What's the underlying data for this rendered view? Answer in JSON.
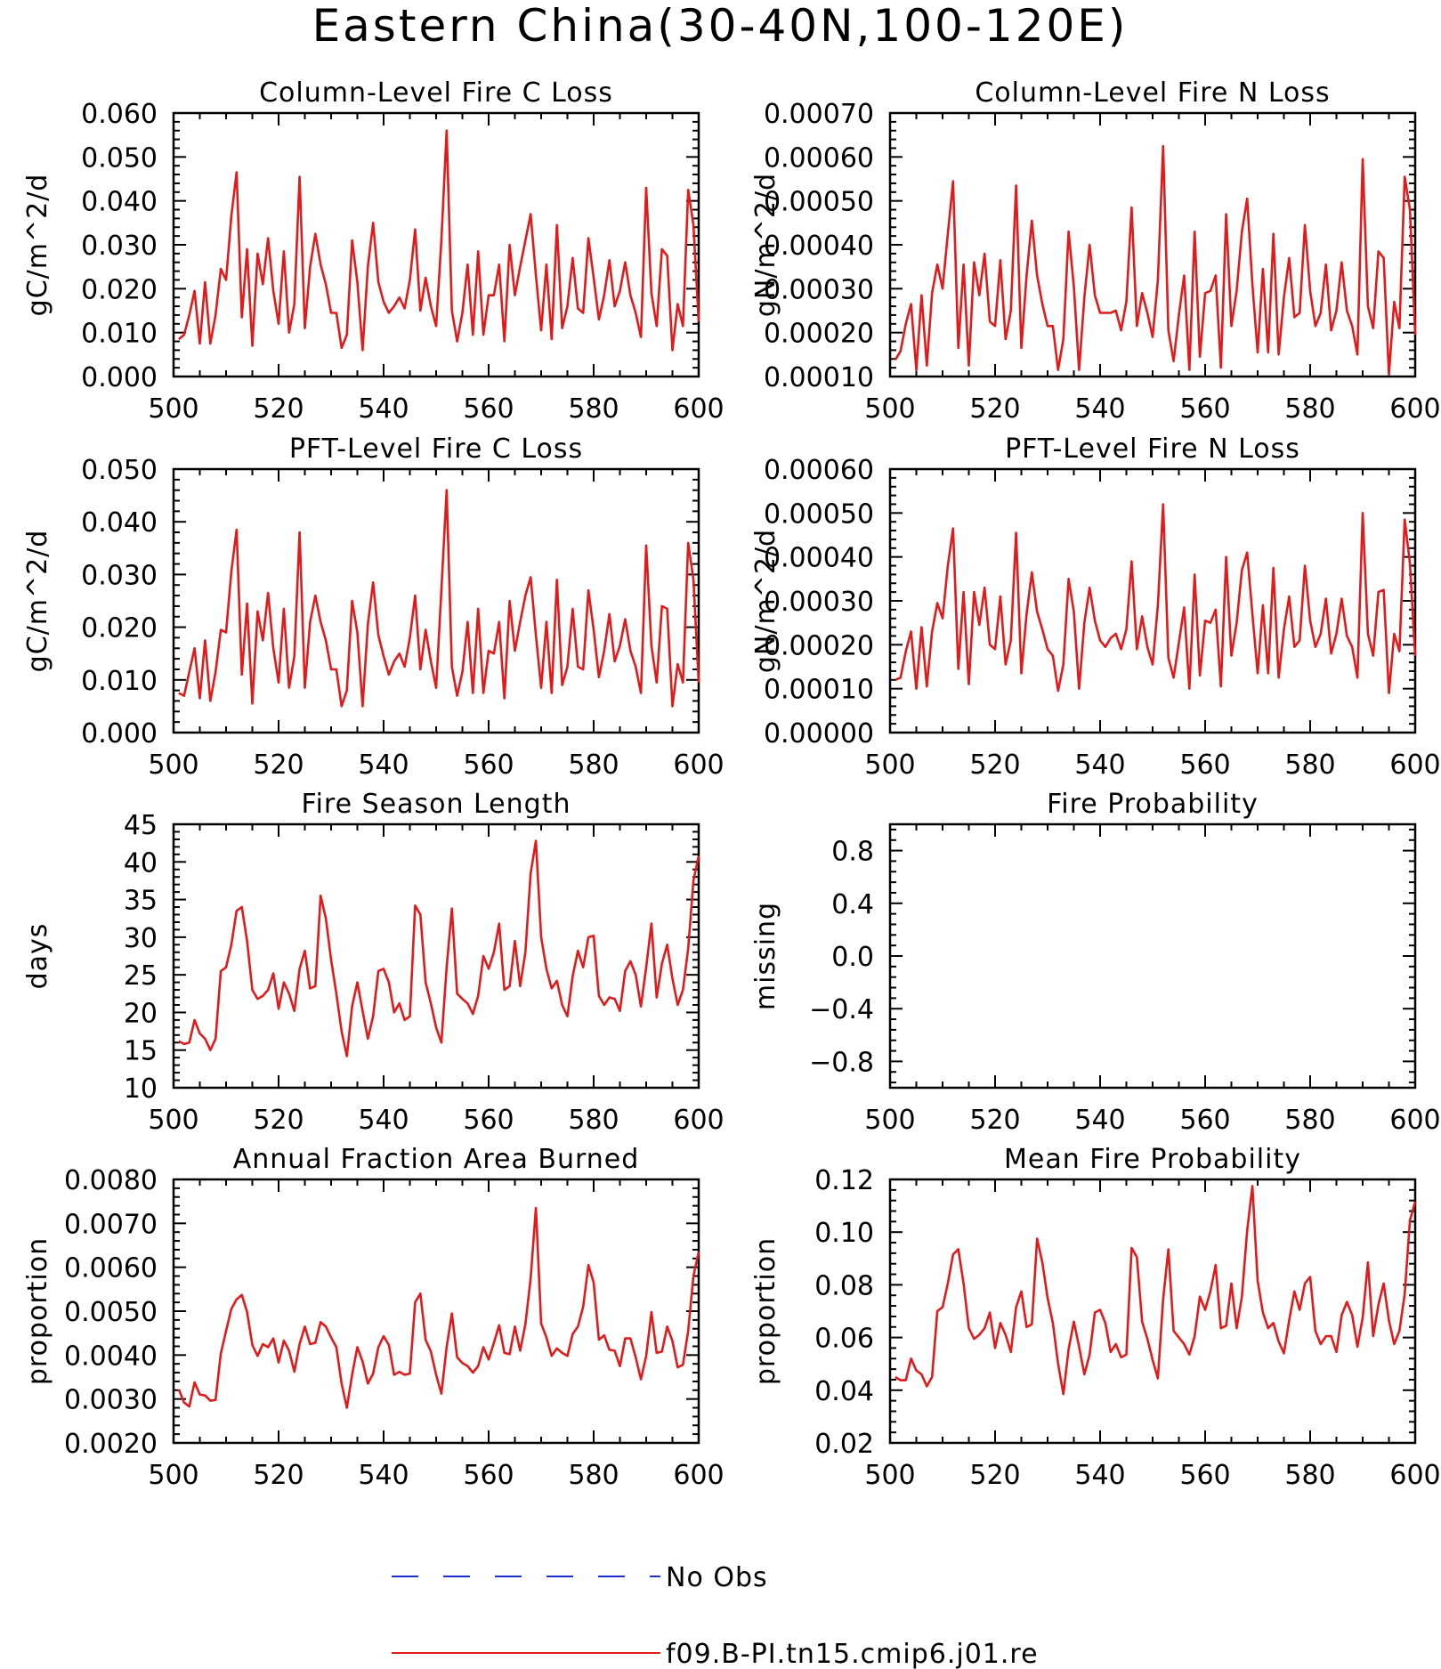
{
  "figure": {
    "title": "Eastern China(30-40N,100-120E)",
    "legend": [
      {
        "label": "No Obs",
        "color": "#2030d0",
        "style": "dashed"
      },
      {
        "label": "f09.B-PI.tn15.cmip6.j01.re",
        "color": "#e21a1a",
        "style": "solid"
      }
    ]
  },
  "chart_data": [
    {
      "type": "line",
      "title": "Column-Level Fire C Loss",
      "ylabel": "gC/m^2/d",
      "xlim": [
        500,
        600
      ],
      "ylim": [
        0.0,
        0.06
      ],
      "xticks": [
        500,
        520,
        540,
        560,
        580,
        600
      ],
      "yticks": [
        "0.000",
        "0.010",
        "0.020",
        "0.030",
        "0.040",
        "0.050",
        "0.060"
      ],
      "series": [
        {
          "color": "#e21a1a",
          "x_start": 501,
          "values": [
            0.0085,
            0.0095,
            0.014,
            0.0195,
            0.0075,
            0.0215,
            0.0075,
            0.014,
            0.0245,
            0.022,
            0.0365,
            0.0465,
            0.0135,
            0.029,
            0.007,
            0.028,
            0.021,
            0.0315,
            0.0195,
            0.012,
            0.0285,
            0.01,
            0.0165,
            0.0455,
            0.011,
            0.025,
            0.0325,
            0.0255,
            0.021,
            0.0145,
            0.0145,
            0.0065,
            0.0095,
            0.031,
            0.0215,
            0.006,
            0.025,
            0.035,
            0.0215,
            0.017,
            0.0145,
            0.016,
            0.018,
            0.0155,
            0.022,
            0.0335,
            0.015,
            0.0225,
            0.016,
            0.0115,
            0.031,
            0.056,
            0.015,
            0.008,
            0.0145,
            0.0255,
            0.0095,
            0.0285,
            0.0095,
            0.0185,
            0.0185,
            0.0255,
            0.008,
            0.03,
            0.0185,
            0.025,
            0.031,
            0.037,
            0.023,
            0.0105,
            0.0255,
            0.0085,
            0.0345,
            0.011,
            0.016,
            0.027,
            0.0155,
            0.0145,
            0.0315,
            0.0225,
            0.013,
            0.0185,
            0.0265,
            0.016,
            0.0195,
            0.026,
            0.0185,
            0.0145,
            0.009,
            0.043,
            0.019,
            0.0115,
            0.029,
            0.0275,
            0.006,
            0.0165,
            0.0115,
            0.0425,
            0.0345,
            0.0125
          ]
        }
      ]
    },
    {
      "type": "line",
      "title": "Column-Level Fire N Loss",
      "ylabel": "gN/m^2/d",
      "xlim": [
        500,
        600
      ],
      "ylim": [
        0.0001,
        0.0007
      ],
      "xticks": [
        500,
        520,
        540,
        560,
        580,
        600
      ],
      "yticks": [
        "0.00010",
        "0.00020",
        "0.00030",
        "0.00040",
        "0.00050",
        "0.00060",
        "0.00070"
      ],
      "series": [
        {
          "color": "#e21a1a",
          "x_start": 501,
          "values": [
            0.000138,
            0.000158,
            0.00022,
            0.000265,
            0.000115,
            0.000285,
            0.000125,
            0.00029,
            0.000355,
            0.0003,
            0.000425,
            0.000545,
            0.000165,
            0.000355,
            0.000125,
            0.00036,
            0.000285,
            0.00038,
            0.000225,
            0.000215,
            0.000365,
            0.000185,
            0.00025,
            0.000535,
            0.000165,
            0.00033,
            0.000455,
            0.00033,
            0.000265,
            0.000215,
            0.000215,
            0.000115,
            0.000185,
            0.00043,
            0.000305,
            0.000115,
            0.00028,
            0.0004,
            0.000285,
            0.000245,
            0.000245,
            0.000245,
            0.00025,
            0.000205,
            0.00027,
            0.000485,
            0.000215,
            0.00029,
            0.000245,
            0.00019,
            0.00032,
            0.000625,
            0.000205,
            0.000135,
            0.00024,
            0.00033,
            0.000115,
            0.00043,
            0.000145,
            0.00029,
            0.000295,
            0.00033,
            0.00012,
            0.00047,
            0.000215,
            0.000295,
            0.00043,
            0.000505,
            0.00031,
            0.000155,
            0.000345,
            0.000155,
            0.000425,
            0.00015,
            0.00028,
            0.00037,
            0.000235,
            0.000245,
            0.000445,
            0.000295,
            0.000215,
            0.000245,
            0.000355,
            0.000205,
            0.00025,
            0.00036,
            0.00025,
            0.000215,
            0.00015,
            0.000595,
            0.00026,
            0.00021,
            0.000385,
            0.00037,
            0.000105,
            0.00027,
            0.00021,
            0.000555,
            0.00048,
            0.000195
          ]
        }
      ]
    },
    {
      "type": "line",
      "title": "PFT-Level Fire C Loss",
      "ylabel": "gC/m^2/d",
      "xlim": [
        500,
        600
      ],
      "ylim": [
        0.0,
        0.05
      ],
      "xticks": [
        500,
        520,
        540,
        560,
        580,
        600
      ],
      "yticks": [
        "0.000",
        "0.010",
        "0.020",
        "0.030",
        "0.040",
        "0.050"
      ],
      "series": [
        {
          "color": "#e21a1a",
          "x_start": 501,
          "values": [
            0.0075,
            0.007,
            0.0115,
            0.016,
            0.0065,
            0.0175,
            0.006,
            0.0115,
            0.0195,
            0.019,
            0.0305,
            0.0385,
            0.011,
            0.0245,
            0.0055,
            0.023,
            0.0175,
            0.0265,
            0.016,
            0.0095,
            0.0235,
            0.0085,
            0.0145,
            0.038,
            0.0085,
            0.021,
            0.026,
            0.021,
            0.0175,
            0.012,
            0.012,
            0.005,
            0.008,
            0.025,
            0.019,
            0.005,
            0.0205,
            0.0285,
            0.0185,
            0.0145,
            0.011,
            0.0135,
            0.015,
            0.0125,
            0.018,
            0.026,
            0.012,
            0.0195,
            0.0135,
            0.0085,
            0.027,
            0.046,
            0.0125,
            0.007,
            0.0115,
            0.021,
            0.0075,
            0.0235,
            0.0075,
            0.0155,
            0.015,
            0.021,
            0.0065,
            0.025,
            0.0155,
            0.021,
            0.026,
            0.0295,
            0.0185,
            0.0085,
            0.021,
            0.0075,
            0.029,
            0.009,
            0.0125,
            0.0235,
            0.0125,
            0.012,
            0.027,
            0.0195,
            0.0105,
            0.0155,
            0.0225,
            0.0135,
            0.0165,
            0.0215,
            0.0155,
            0.0125,
            0.0075,
            0.0355,
            0.0165,
            0.0095,
            0.024,
            0.0235,
            0.005,
            0.013,
            0.0095,
            0.036,
            0.029,
            0.0095
          ]
        }
      ]
    },
    {
      "type": "line",
      "title": "PFT-Level Fire N Loss",
      "ylabel": "gN/m^2/d",
      "xlim": [
        500,
        600
      ],
      "ylim": [
        0.0,
        0.0006
      ],
      "xticks": [
        500,
        520,
        540,
        560,
        580,
        600
      ],
      "yticks": [
        "0.00000",
        "0.00010",
        "0.00020",
        "0.00030",
        "0.00040",
        "0.00050",
        "0.00060"
      ],
      "series": [
        {
          "color": "#e21a1a",
          "x_start": 501,
          "values": [
            0.00012,
            0.000125,
            0.000185,
            0.00023,
            0.0001,
            0.00024,
            0.000105,
            0.00023,
            0.000295,
            0.00026,
            0.00038,
            0.000465,
            0.000145,
            0.00032,
            0.00011,
            0.00032,
            0.000245,
            0.00033,
            0.0002,
            0.00019,
            0.00031,
            0.000155,
            0.00021,
            0.000455,
            0.000135,
            0.00027,
            0.000365,
            0.000275,
            0.000235,
            0.00019,
            0.000175,
            9.5e-05,
            0.000155,
            0.00035,
            0.000275,
            0.0001,
            0.00025,
            0.00033,
            0.000255,
            0.00021,
            0.000195,
            0.000215,
            0.000225,
            0.00019,
            0.000235,
            0.00039,
            0.00019,
            0.000265,
            0.000195,
            0.000155,
            0.00029,
            0.00052,
            0.00017,
            0.000125,
            0.000205,
            0.000285,
            0.0001,
            0.00036,
            0.00013,
            0.000255,
            0.00025,
            0.00028,
            0.000105,
            0.0004,
            0.000175,
            0.00025,
            0.00037,
            0.00041,
            0.00027,
            0.000135,
            0.00029,
            0.000135,
            0.000375,
            0.000125,
            0.000235,
            0.00031,
            0.000195,
            0.00021,
            0.00038,
            0.000255,
            0.000195,
            0.000225,
            0.000305,
            0.00018,
            0.000225,
            0.000305,
            0.00022,
            0.000195,
            0.000125,
            0.0005,
            0.000225,
            0.000175,
            0.00032,
            0.000325,
            9e-05,
            0.000225,
            0.000185,
            0.000485,
            0.000385,
            0.000175
          ]
        }
      ]
    },
    {
      "type": "line",
      "title": "Fire Season Length",
      "ylabel": "days",
      "xlim": [
        500,
        600
      ],
      "ylim": [
        10,
        45
      ],
      "xticks": [
        500,
        520,
        540,
        560,
        580,
        600
      ],
      "yticks": [
        "10",
        "15",
        "20",
        "25",
        "30",
        "35",
        "40",
        "45"
      ],
      "series": [
        {
          "color": "#e21a1a",
          "x_start": 501,
          "values": [
            16.2,
            15.8,
            16,
            19,
            17.2,
            16.5,
            15,
            16.5,
            25.5,
            26,
            29,
            33.5,
            34,
            29.5,
            23,
            21.8,
            22.2,
            23,
            25.2,
            20.5,
            24,
            22.5,
            20.2,
            25.8,
            28.2,
            23.2,
            23.5,
            35.5,
            32.5,
            27,
            22.5,
            17.5,
            14.2,
            20.8,
            24,
            20.2,
            16.5,
            19.5,
            25.5,
            25.8,
            24,
            20,
            21.2,
            19,
            19.5,
            34.2,
            33,
            24,
            21.2,
            18,
            16,
            26,
            33.8,
            22.5,
            21.8,
            21.2,
            19.8,
            22.2,
            27.5,
            25.8,
            28,
            31.8,
            23,
            23.5,
            29.5,
            23.5,
            28,
            38.5,
            42.8,
            30,
            25.8,
            23.2,
            24.2,
            21,
            19.5,
            24.8,
            28.2,
            26,
            30,
            30.2,
            22.2,
            21,
            22,
            21.8,
            20.2,
            25.5,
            26.8,
            25,
            20.8,
            26,
            31.8,
            22,
            26.5,
            29,
            24.5,
            21,
            23,
            28.5,
            37.5,
            40.8
          ]
        }
      ]
    },
    {
      "type": "line",
      "title": "Fire Probability",
      "ylabel": "missing",
      "xlim": [
        500,
        600
      ],
      "ylim": [
        -1.0,
        1.0
      ],
      "xticks": [
        500,
        520,
        540,
        560,
        580,
        600
      ],
      "yticks": [
        "-0.8",
        "-0.4",
        "0.0",
        "0.4",
        "0.8"
      ],
      "series": []
    },
    {
      "type": "line",
      "title": "Annual Fraction Area Burned",
      "ylabel": "proportion",
      "xlim": [
        500,
        600
      ],
      "ylim": [
        0.002,
        0.008
      ],
      "xticks": [
        500,
        520,
        540,
        560,
        580,
        600
      ],
      "yticks": [
        "0.0020",
        "0.0030",
        "0.0040",
        "0.0050",
        "0.0060",
        "0.0070",
        "0.0080"
      ],
      "series": [
        {
          "color": "#e21a1a",
          "x_start": 501,
          "values": [
            0.00322,
            0.00292,
            0.00283,
            0.00338,
            0.0031,
            0.00308,
            0.00296,
            0.00298,
            0.00404,
            0.00455,
            0.00505,
            0.00527,
            0.00537,
            0.00498,
            0.00423,
            0.00398,
            0.00425,
            0.00418,
            0.00438,
            0.00383,
            0.00433,
            0.0041,
            0.00362,
            0.00425,
            0.00465,
            0.00425,
            0.00428,
            0.00475,
            0.00465,
            0.0044,
            0.00418,
            0.00335,
            0.0028,
            0.00355,
            0.00418,
            0.00385,
            0.00335,
            0.00358,
            0.00418,
            0.00443,
            0.00423,
            0.00355,
            0.00362,
            0.00355,
            0.00358,
            0.0052,
            0.0054,
            0.00435,
            0.00408,
            0.00355,
            0.00312,
            0.00418,
            0.00495,
            0.00395,
            0.00382,
            0.00375,
            0.0036,
            0.00375,
            0.00418,
            0.0039,
            0.00428,
            0.00468,
            0.00405,
            0.00402,
            0.00465,
            0.0041,
            0.0047,
            0.00575,
            0.00735,
            0.00472,
            0.0044,
            0.00398,
            0.00415,
            0.00405,
            0.00398,
            0.00448,
            0.00465,
            0.0051,
            0.00605,
            0.00565,
            0.00435,
            0.00445,
            0.00412,
            0.0041,
            0.00375,
            0.00438,
            0.00438,
            0.00395,
            0.00345,
            0.00398,
            0.00498,
            0.00405,
            0.00408,
            0.00465,
            0.00432,
            0.00372,
            0.00378,
            0.00455,
            0.0058,
            0.00635
          ]
        }
      ]
    },
    {
      "type": "line",
      "title": "Mean Fire Probability",
      "ylabel": "proportion",
      "xlim": [
        500,
        600
      ],
      "ylim": [
        0.02,
        0.12
      ],
      "xticks": [
        500,
        520,
        540,
        560,
        580,
        600
      ],
      "yticks": [
        "0.02",
        "0.04",
        "0.06",
        "0.08",
        "0.10",
        "0.12"
      ],
      "series": [
        {
          "color": "#e21a1a",
          "x_start": 501,
          "values": [
            0.045,
            0.0438,
            0.0438,
            0.052,
            0.0475,
            0.046,
            0.0415,
            0.045,
            0.07,
            0.0715,
            0.0805,
            0.0915,
            0.0935,
            0.0805,
            0.0635,
            0.0595,
            0.061,
            0.0635,
            0.0695,
            0.056,
            0.0655,
            0.061,
            0.0545,
            0.0715,
            0.0775,
            0.064,
            0.065,
            0.0975,
            0.0885,
            0.075,
            0.0655,
            0.05,
            0.0385,
            0.0555,
            0.066,
            0.0565,
            0.046,
            0.0535,
            0.0695,
            0.0705,
            0.0655,
            0.0545,
            0.0575,
            0.0525,
            0.0535,
            0.094,
            0.0905,
            0.066,
            0.0595,
            0.0515,
            0.0445,
            0.0745,
            0.0935,
            0.0625,
            0.06,
            0.0575,
            0.0535,
            0.0605,
            0.0755,
            0.0705,
            0.0775,
            0.0875,
            0.0635,
            0.0645,
            0.0805,
            0.0635,
            0.0755,
            0.1005,
            0.1175,
            0.0815,
            0.0695,
            0.0635,
            0.0655,
            0.0585,
            0.054,
            0.0665,
            0.0775,
            0.0705,
            0.0805,
            0.083,
            0.0625,
            0.0575,
            0.0605,
            0.0605,
            0.0545,
            0.0685,
            0.0735,
            0.0685,
            0.0565,
            0.0675,
            0.0885,
            0.0605,
            0.0725,
            0.0805,
            0.0665,
            0.0575,
            0.0625,
            0.0765,
            0.1045,
            0.1115
          ]
        }
      ]
    }
  ]
}
